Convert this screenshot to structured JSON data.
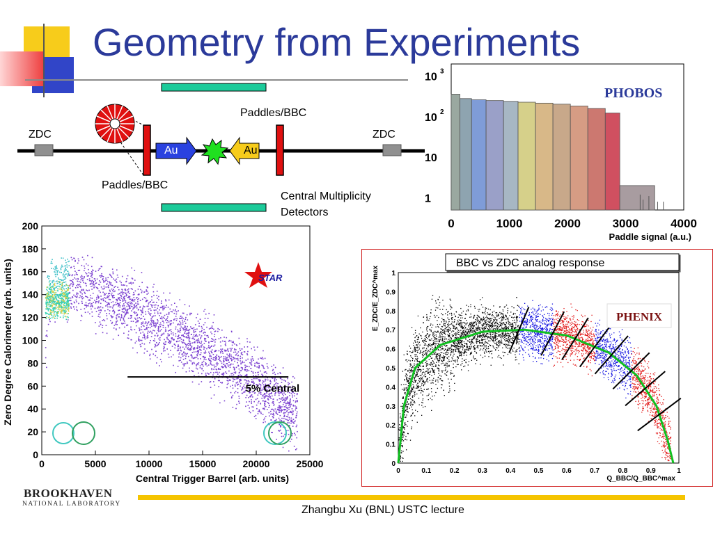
{
  "slide": {
    "title": "Geometry from Experiments",
    "footer": "Zhangbu Xu (BNL) USTC lecture"
  },
  "logo": {
    "name": "BROOKHAVEN",
    "subtitle": "NATIONAL LABORATORY"
  },
  "detector_diagram": {
    "zdc_left": "ZDC",
    "zdc_right": "ZDC",
    "paddles_top": "Paddles/BBC",
    "paddles_bottom": "Paddles/BBC",
    "beam_left": "Au",
    "beam_right": "Au",
    "cmd_line1": "Central Multiplicity",
    "cmd_line2": "Detectors"
  },
  "charts": [
    {
      "id": "phobos",
      "type": "bar",
      "experiment_logo": "PHOBOS",
      "xlabel": "Paddle signal (a.u.)",
      "ylabel": "",
      "yscale": "log",
      "xlim": [
        0,
        4000
      ],
      "ylim": [
        0.5,
        2000
      ],
      "xticks": [
        "0",
        "1000",
        "2000",
        "3000",
        "4000"
      ],
      "yticks": [
        "1",
        "10",
        "10",
        "10"
      ],
      "ytick_exponents": [
        "",
        "",
        "2",
        "3"
      ],
      "grid": false,
      "chart_data": {
        "type": "bar",
        "x": [
          0,
          250,
          500,
          750,
          1000,
          1250,
          1500,
          1750,
          2000,
          2250,
          2500,
          2750,
          3000,
          3200,
          3400
        ],
        "values": [
          400,
          280,
          260,
          250,
          240,
          230,
          220,
          210,
          200,
          180,
          160,
          140,
          40,
          2,
          1
        ],
        "centrality_bins": [
          {
            "x_start": 0,
            "x_end": 150,
            "color": "#9aa8a0"
          },
          {
            "x_start": 150,
            "x_end": 350,
            "color": "#8ea4b0"
          },
          {
            "x_start": 350,
            "x_end": 600,
            "color": "#7f9cd8"
          },
          {
            "x_start": 600,
            "x_end": 900,
            "color": "#9aa0c8"
          },
          {
            "x_start": 900,
            "x_end": 1150,
            "color": "#a7b7c4"
          },
          {
            "x_start": 1150,
            "x_end": 1450,
            "color": "#d6d08a"
          },
          {
            "x_start": 1450,
            "x_end": 1750,
            "color": "#d8b888"
          },
          {
            "x_start": 1750,
            "x_end": 2050,
            "color": "#c8a88a"
          },
          {
            "x_start": 2050,
            "x_end": 2350,
            "color": "#d69c84"
          },
          {
            "x_start": 2350,
            "x_end": 2650,
            "color": "#cc7870"
          },
          {
            "x_start": 2650,
            "x_end": 2900,
            "color": "#d05060"
          },
          {
            "x_start": 2900,
            "x_end": 3500,
            "color": "#a89ca0"
          }
        ]
      }
    },
    {
      "id": "star",
      "type": "scatter",
      "experiment_logo": "STAR",
      "xlabel": "Central Trigger Barrel (arb. units)",
      "ylabel": "Zero Degree Calorimeter (arb. units)",
      "xlim": [
        0,
        25000
      ],
      "ylim": [
        0,
        200
      ],
      "xticks": [
        "0",
        "5000",
        "10000",
        "15000",
        "20000",
        "25000"
      ],
      "yticks": [
        "0",
        "20",
        "40",
        "60",
        "80",
        "100",
        "120",
        "140",
        "160",
        "180",
        "200"
      ],
      "annotation": "5% Central",
      "cut_line": {
        "x_start": 8000,
        "x_end": 23000,
        "y": 68
      },
      "grid": false,
      "chart_data": {
        "type": "scatter",
        "band": [
          {
            "x": 200,
            "y": 60
          },
          {
            "x": 500,
            "y": 140
          },
          {
            "x": 1000,
            "y": 152
          },
          {
            "x": 3000,
            "y": 150
          },
          {
            "x": 6000,
            "y": 140
          },
          {
            "x": 9000,
            "y": 125
          },
          {
            "x": 12000,
            "y": 108
          },
          {
            "x": 15000,
            "y": 92
          },
          {
            "x": 18000,
            "y": 75
          },
          {
            "x": 21000,
            "y": 55
          },
          {
            "x": 23500,
            "y": 35
          }
        ],
        "color": "#7a3fd0"
      }
    },
    {
      "id": "phenix",
      "type": "scatter",
      "experiment_logo": "PHENIX",
      "title": "BBC vs ZDC analog response",
      "xlabel": "Q_BBC/Q_BBC^max",
      "ylabel": "E_ZDC/E_ZDC^max",
      "xlim": [
        0,
        1
      ],
      "ylim": [
        0,
        1
      ],
      "xticks": [
        "0",
        "0.1",
        "0.2",
        "0.3",
        "0.4",
        "0.5",
        "0.6",
        "0.7",
        "0.8",
        "0.9",
        "1"
      ],
      "yticks": [
        "0",
        "0.1",
        "0.2",
        "0.3",
        "0.4",
        "0.5",
        "0.6",
        "0.7",
        "0.8",
        "0.9",
        "1"
      ],
      "grid": false,
      "chart_data": {
        "type": "scatter",
        "series": [
          {
            "color": "#000000",
            "x_range": [
              0,
              0.43
            ]
          },
          {
            "color": "#1010e0",
            "x_range": [
              0.43,
              0.55
            ]
          },
          {
            "color": "#e01010",
            "x_range": [
              0.55,
              0.7
            ]
          },
          {
            "color": "#1010e0",
            "x_range": [
              0.7,
              0.83
            ]
          },
          {
            "color": "#e01010",
            "x_range": [
              0.83,
              0.97
            ]
          }
        ],
        "fit_curve": {
          "color": "#10c020",
          "points": [
            [
              0,
              0
            ],
            [
              0.02,
              0.3
            ],
            [
              0.06,
              0.5
            ],
            [
              0.15,
              0.62
            ],
            [
              0.3,
              0.69
            ],
            [
              0.45,
              0.7
            ],
            [
              0.6,
              0.67
            ],
            [
              0.75,
              0.58
            ],
            [
              0.85,
              0.46
            ],
            [
              0.92,
              0.3
            ],
            [
              0.96,
              0.12
            ],
            [
              0.98,
              0
            ]
          ]
        }
      }
    }
  ]
}
